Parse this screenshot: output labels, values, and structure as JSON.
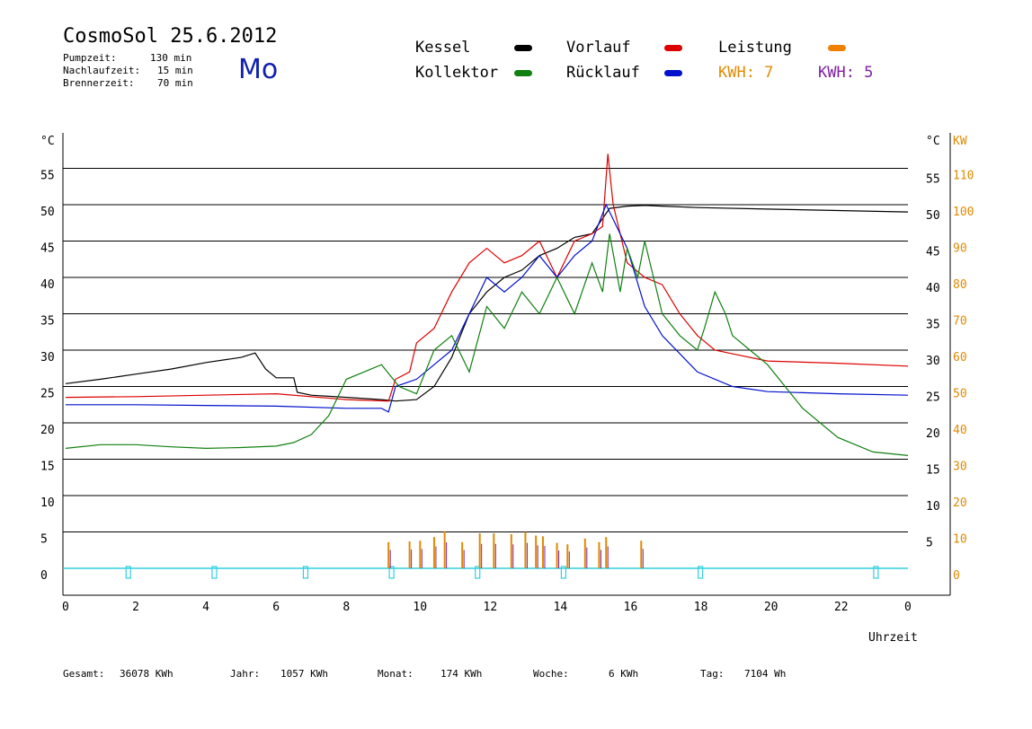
{
  "header": {
    "title": "CosmoSol 25.6.2012",
    "day": "Mo",
    "info": [
      {
        "label": "Pumpzeit:",
        "value": "130 min"
      },
      {
        "label": "Nachlaufzeit:",
        "value": "15 min"
      },
      {
        "label": "Brennerzeit:",
        "value": "70 min"
      }
    ]
  },
  "legend": {
    "kessel": {
      "label": "Kessel",
      "color": "#000000"
    },
    "vorlauf": {
      "label": "Vorlauf",
      "color": "#dd0000"
    },
    "leistung": {
      "label": "Leistung",
      "color": "#f08000"
    },
    "kollektor": {
      "label": "Kollektor",
      "color": "#108010"
    },
    "ruecklauf": {
      "label": "Rücklauf",
      "color": "#0010cc"
    },
    "kwh1": {
      "label": "KWH: 7",
      "color": "#e08a00"
    },
    "kwh2": {
      "label": "KWH: 5",
      "color": "#8020a0"
    }
  },
  "footer": [
    {
      "label": "Gesamt:",
      "value": "36078 KWh"
    },
    {
      "label": "Jahr:",
      "value": "1057 KWh"
    },
    {
      "label": "Monat:",
      "value": "174 KWh"
    },
    {
      "label": "Woche:",
      "value": "6 KWh"
    },
    {
      "label": "Tag:",
      "value": "7104 Wh"
    }
  ],
  "chart_data": {
    "type": "line",
    "xlabel": "Uhrzeit",
    "ylabel": "°C",
    "ylabel_right_1": "°C",
    "ylabel_right_2": "KW",
    "xlim": [
      0,
      24
    ],
    "ylim": [
      0,
      60
    ],
    "x_tick_labels": [
      "0",
      "2",
      "4",
      "6",
      "8",
      "10",
      "12",
      "14",
      "16",
      "18",
      "20",
      "22",
      "0"
    ],
    "y_ticks": [
      0,
      5,
      10,
      15,
      20,
      25,
      30,
      35,
      40,
      45,
      50,
      55
    ],
    "y_right_ticks": [
      5,
      10,
      15,
      20,
      25,
      30,
      35,
      40,
      45,
      50,
      55
    ],
    "kw_ticks": [
      0,
      10,
      20,
      30,
      40,
      50,
      60,
      70,
      80,
      90,
      100,
      110
    ],
    "grid": true,
    "series": [
      {
        "name": "Kessel",
        "color": "#000000",
        "x": [
          0,
          1,
          2,
          3,
          4,
          5,
          5.4,
          5.7,
          6,
          6.5,
          6.6,
          7,
          8,
          9,
          9.4,
          10,
          10.5,
          11,
          11.5,
          12,
          12.5,
          13,
          13.5,
          14,
          14.5,
          15,
          15.5,
          16,
          16.5,
          17,
          18,
          20,
          22,
          24
        ],
        "y": [
          25.4,
          26,
          26.7,
          27.4,
          28.3,
          29,
          29.6,
          27.4,
          26.2,
          26.2,
          24.2,
          23.8,
          23.5,
          23.2,
          23,
          23.2,
          25,
          29,
          35,
          38,
          40,
          41,
          43,
          44,
          45.5,
          46,
          49.5,
          49.8,
          49.9,
          49.8,
          49.6,
          49.4,
          49.2,
          49
        ]
      },
      {
        "name": "Vorlauf",
        "color": "#dd0000",
        "x": [
          0,
          2,
          4,
          6,
          8,
          9.2,
          9.4,
          9.8,
          10,
          10.5,
          11,
          11.5,
          12,
          12.5,
          13,
          13.5,
          14,
          14.5,
          15,
          15.3,
          15.45,
          15.6,
          16,
          16.5,
          17,
          17.5,
          18,
          18.5,
          19,
          20,
          22,
          24
        ],
        "y": [
          23.5,
          23.6,
          23.8,
          24,
          23.2,
          23,
          26,
          27,
          31,
          33,
          38,
          42,
          44,
          42,
          43,
          45,
          40,
          45,
          46,
          47,
          57,
          50,
          42,
          40,
          39,
          35,
          32,
          30,
          29.5,
          28.5,
          28.2,
          27.8
        ]
      },
      {
        "name": "Rücklauf",
        "color": "#0010cc",
        "x": [
          0,
          2,
          4,
          6,
          8,
          9,
          9.2,
          9.4,
          10,
          10.5,
          11,
          11.5,
          12,
          12.5,
          13,
          13.5,
          14,
          14.5,
          15,
          15.4,
          16,
          16.5,
          17,
          18,
          19,
          20,
          22,
          24
        ],
        "y": [
          22.5,
          22.5,
          22.4,
          22.3,
          22,
          22,
          21.5,
          25,
          26,
          28,
          30,
          35,
          40,
          38,
          40,
          43,
          40,
          43,
          45,
          50,
          44,
          36,
          32,
          27,
          25,
          24.3,
          24,
          23.8
        ]
      },
      {
        "name": "Kollektor",
        "color": "#108010",
        "x": [
          0,
          1,
          2,
          3,
          4,
          5,
          6,
          6.5,
          7,
          7.5,
          8,
          8.5,
          9,
          9.5,
          10,
          10.5,
          11,
          11.5,
          12,
          12.5,
          13,
          13.5,
          14,
          14.5,
          15,
          15.3,
          15.5,
          15.8,
          16,
          16.3,
          16.5,
          17,
          17.5,
          18,
          18.2,
          18.5,
          18.8,
          19,
          19.5,
          20,
          21,
          22,
          23,
          24
        ],
        "y": [
          16.5,
          17,
          17,
          16.7,
          16.5,
          16.6,
          16.8,
          17.3,
          18.4,
          21,
          26,
          27,
          28,
          25,
          24,
          30,
          32,
          27,
          36,
          33,
          38,
          35,
          40,
          35,
          42,
          38,
          46,
          38,
          44,
          40,
          45,
          35,
          32,
          30,
          33,
          38,
          35,
          32,
          30,
          28,
          22,
          18,
          16,
          15.5
        ]
      }
    ],
    "bars": {
      "kwh7_color": "#e08a00",
      "kwh5_color": "#8020a0",
      "x": [
        9.2,
        9.8,
        10.1,
        10.5,
        10.8,
        11.3,
        11.8,
        12.2,
        12.7,
        13.1,
        13.4,
        13.6,
        14,
        14.3,
        14.8,
        15.2,
        15.4,
        16.4
      ],
      "y": [
        3.6,
        3.7,
        3.8,
        4.3,
        5.1,
        3.6,
        4.8,
        4.8,
        4.7,
        5,
        4.5,
        4.4,
        3.5,
        3.3,
        4.1,
        3.6,
        4.3,
        3.8
      ]
    },
    "pump_markers_x": [
      1.8,
      4.25,
      6.85,
      9.3,
      11.75,
      14.2,
      18.1,
      23.1
    ],
    "baseline_color": "#30d0e0",
    "right_axis_color": "#e08a00"
  }
}
